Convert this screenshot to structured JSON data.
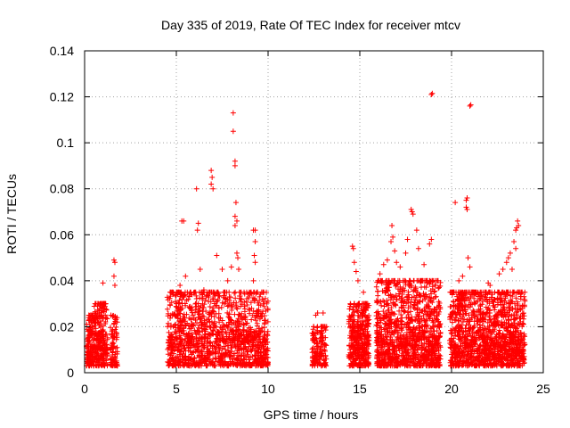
{
  "chart_data": {
    "type": "scatter",
    "title": "Day 335 of 2019, Rate Of TEC Index for receiver mtcv",
    "xlabel": "GPS time / hours",
    "ylabel": "ROTI / TECUs",
    "xlim": [
      0,
      25
    ],
    "ylim": [
      0,
      0.14
    ],
    "grid": true,
    "marker": "+",
    "color": "#ff0000",
    "xticks": [
      "0",
      "5",
      "10",
      "15",
      "20",
      "25"
    ],
    "yticks": [
      "0",
      "0.02",
      "0.04",
      "0.06",
      "0.08",
      "0.1",
      "0.12",
      "0.14"
    ],
    "clusters": [
      {
        "x0": 0.1,
        "x1": 0.5,
        "ymax": 0.025,
        "n": 140
      },
      {
        "x0": 0.5,
        "x1": 1.25,
        "ymax": 0.03,
        "n": 240
      },
      {
        "x0": 1.4,
        "x1": 1.8,
        "ymax": 0.025,
        "n": 90
      },
      {
        "x0": 4.5,
        "x1": 10.0,
        "ymax": 0.035,
        "n": 1300
      },
      {
        "x0": 12.4,
        "x1": 13.2,
        "ymax": 0.02,
        "n": 140
      },
      {
        "x0": 14.4,
        "x1": 15.5,
        "ymax": 0.03,
        "n": 380
      },
      {
        "x0": 15.9,
        "x1": 19.4,
        "ymax": 0.04,
        "n": 1100
      },
      {
        "x0": 19.9,
        "x1": 24.0,
        "ymax": 0.035,
        "n": 1300
      }
    ],
    "highlights": [
      {
        "x": 0.25,
        "y": 0.023
      },
      {
        "x": 0.7,
        "y": 0.029
      },
      {
        "x": 0.75,
        "y": 0.03
      },
      {
        "x": 1.0,
        "y": 0.039
      },
      {
        "x": 1.6,
        "y": 0.049
      },
      {
        "x": 1.65,
        "y": 0.048
      },
      {
        "x": 1.6,
        "y": 0.042
      },
      {
        "x": 1.65,
        "y": 0.038
      },
      {
        "x": 4.7,
        "y": 0.025
      },
      {
        "x": 5.0,
        "y": 0.03
      },
      {
        "x": 5.2,
        "y": 0.038
      },
      {
        "x": 5.3,
        "y": 0.066
      },
      {
        "x": 5.4,
        "y": 0.066
      },
      {
        "x": 5.5,
        "y": 0.042
      },
      {
        "x": 6.1,
        "y": 0.08
      },
      {
        "x": 6.2,
        "y": 0.065
      },
      {
        "x": 6.15,
        "y": 0.062
      },
      {
        "x": 6.3,
        "y": 0.045
      },
      {
        "x": 6.5,
        "y": 0.036
      },
      {
        "x": 6.9,
        "y": 0.088
      },
      {
        "x": 6.95,
        "y": 0.085
      },
      {
        "x": 6.9,
        "y": 0.082
      },
      {
        "x": 7.0,
        "y": 0.08
      },
      {
        "x": 7.2,
        "y": 0.051
      },
      {
        "x": 7.5,
        "y": 0.045
      },
      {
        "x": 7.8,
        "y": 0.04
      },
      {
        "x": 8.0,
        "y": 0.046
      },
      {
        "x": 8.1,
        "y": 0.113
      },
      {
        "x": 8.1,
        "y": 0.105
      },
      {
        "x": 8.2,
        "y": 0.092
      },
      {
        "x": 8.2,
        "y": 0.09
      },
      {
        "x": 8.25,
        "y": 0.074
      },
      {
        "x": 8.2,
        "y": 0.068
      },
      {
        "x": 8.3,
        "y": 0.066
      },
      {
        "x": 8.2,
        "y": 0.064
      },
      {
        "x": 8.3,
        "y": 0.052
      },
      {
        "x": 8.35,
        "y": 0.05
      },
      {
        "x": 8.4,
        "y": 0.045
      },
      {
        "x": 9.2,
        "y": 0.062
      },
      {
        "x": 9.3,
        "y": 0.062
      },
      {
        "x": 9.3,
        "y": 0.057
      },
      {
        "x": 9.25,
        "y": 0.051
      },
      {
        "x": 9.3,
        "y": 0.048
      },
      {
        "x": 9.2,
        "y": 0.04
      },
      {
        "x": 12.6,
        "y": 0.025
      },
      {
        "x": 12.7,
        "y": 0.026
      },
      {
        "x": 13.0,
        "y": 0.026
      },
      {
        "x": 14.6,
        "y": 0.055
      },
      {
        "x": 14.65,
        "y": 0.054
      },
      {
        "x": 14.7,
        "y": 0.048
      },
      {
        "x": 14.8,
        "y": 0.044
      },
      {
        "x": 14.9,
        "y": 0.04
      },
      {
        "x": 15.2,
        "y": 0.035
      },
      {
        "x": 16.1,
        "y": 0.043
      },
      {
        "x": 16.3,
        "y": 0.047
      },
      {
        "x": 16.5,
        "y": 0.049
      },
      {
        "x": 16.7,
        "y": 0.057
      },
      {
        "x": 16.75,
        "y": 0.064
      },
      {
        "x": 16.8,
        "y": 0.059
      },
      {
        "x": 16.9,
        "y": 0.053
      },
      {
        "x": 17.0,
        "y": 0.048
      },
      {
        "x": 17.2,
        "y": 0.046
      },
      {
        "x": 17.5,
        "y": 0.052
      },
      {
        "x": 17.6,
        "y": 0.058
      },
      {
        "x": 17.8,
        "y": 0.071
      },
      {
        "x": 17.85,
        "y": 0.07
      },
      {
        "x": 17.9,
        "y": 0.069
      },
      {
        "x": 18.1,
        "y": 0.062
      },
      {
        "x": 18.2,
        "y": 0.054
      },
      {
        "x": 18.5,
        "y": 0.047
      },
      {
        "x": 18.8,
        "y": 0.056
      },
      {
        "x": 18.9,
        "y": 0.058
      },
      {
        "x": 19.0,
        "y": 0.04
      },
      {
        "x": 18.9,
        "y": 0.121
      },
      {
        "x": 18.95,
        "y": 0.1215
      },
      {
        "x": 20.2,
        "y": 0.074
      },
      {
        "x": 20.4,
        "y": 0.04
      },
      {
        "x": 20.6,
        "y": 0.042
      },
      {
        "x": 20.8,
        "y": 0.075
      },
      {
        "x": 20.85,
        "y": 0.076
      },
      {
        "x": 20.8,
        "y": 0.072
      },
      {
        "x": 20.85,
        "y": 0.071
      },
      {
        "x": 20.9,
        "y": 0.05
      },
      {
        "x": 21.0,
        "y": 0.046
      },
      {
        "x": 21.0,
        "y": 0.116
      },
      {
        "x": 21.05,
        "y": 0.1165
      },
      {
        "x": 21.8,
        "y": 0.033
      },
      {
        "x": 22.0,
        "y": 0.039
      },
      {
        "x": 22.1,
        "y": 0.038
      },
      {
        "x": 22.6,
        "y": 0.043
      },
      {
        "x": 22.8,
        "y": 0.045
      },
      {
        "x": 23.0,
        "y": 0.048
      },
      {
        "x": 23.1,
        "y": 0.05
      },
      {
        "x": 23.2,
        "y": 0.052
      },
      {
        "x": 23.4,
        "y": 0.057
      },
      {
        "x": 23.5,
        "y": 0.062
      },
      {
        "x": 23.55,
        "y": 0.063
      },
      {
        "x": 23.6,
        "y": 0.066
      },
      {
        "x": 23.65,
        "y": 0.064
      },
      {
        "x": 23.5,
        "y": 0.054
      },
      {
        "x": 23.3,
        "y": 0.045
      }
    ]
  }
}
